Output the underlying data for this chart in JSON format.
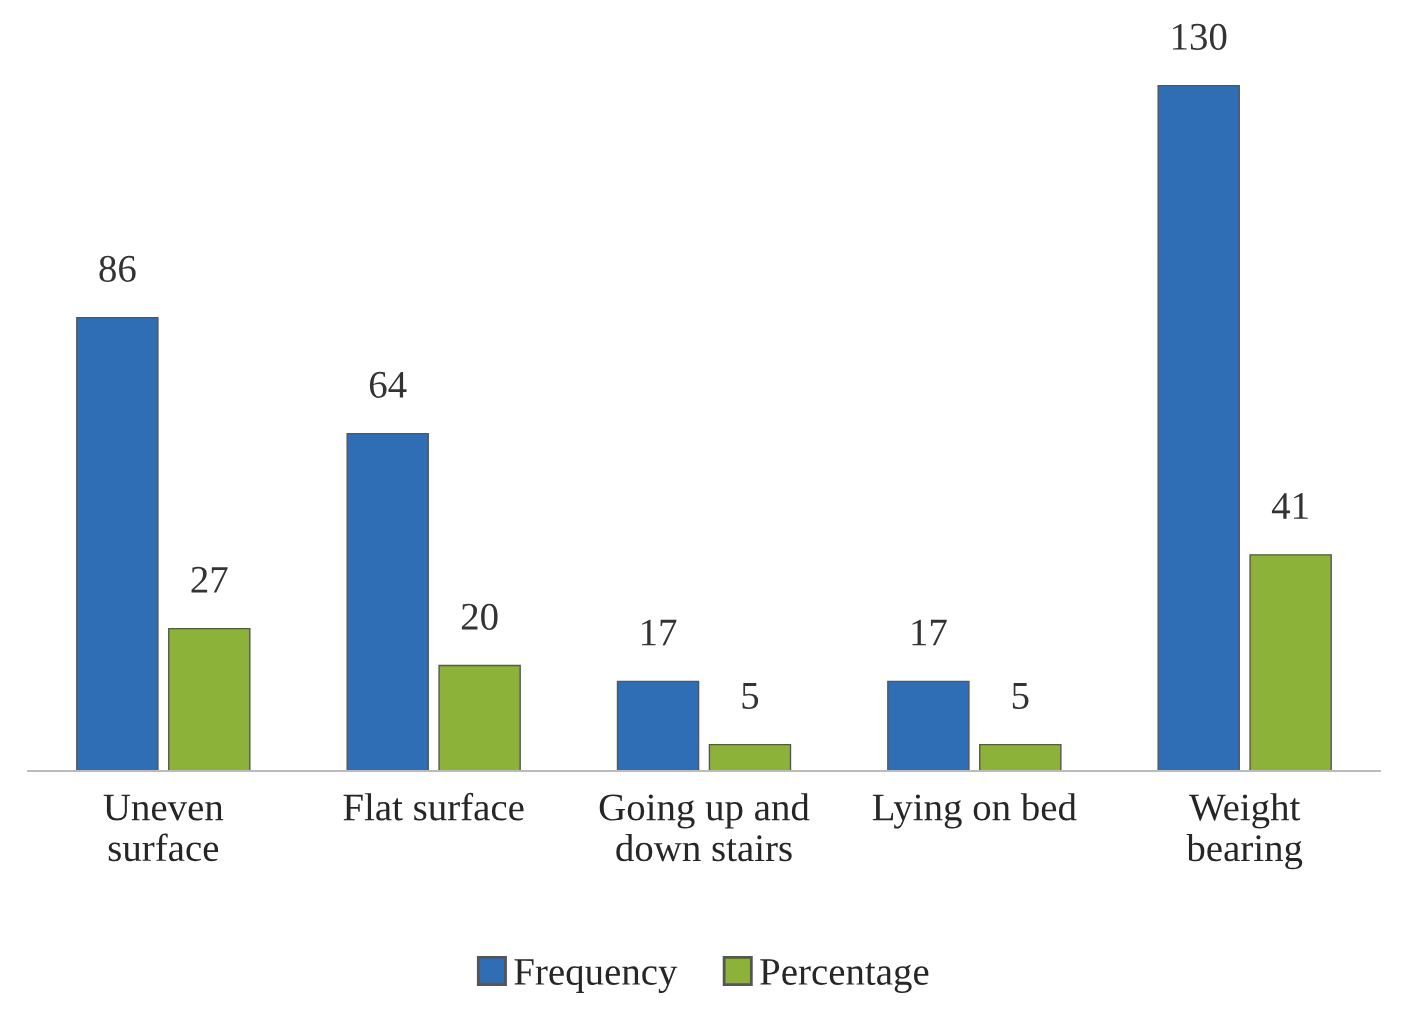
{
  "chart_data": {
    "type": "bar",
    "categories": [
      "Uneven surface",
      "Flat surface",
      "Going up and down stairs",
      "Lying on bed",
      "Weight bearing"
    ],
    "series": [
      {
        "name": "Frequency",
        "color": "#2f6db5",
        "values": [
          86,
          64,
          17,
          17,
          130
        ]
      },
      {
        "name": "Percentage",
        "color": "#8cb23a",
        "values": [
          27,
          20,
          5,
          5,
          41
        ]
      }
    ],
    "data_labels": true,
    "legend": "bottom",
    "grid": false
  }
}
